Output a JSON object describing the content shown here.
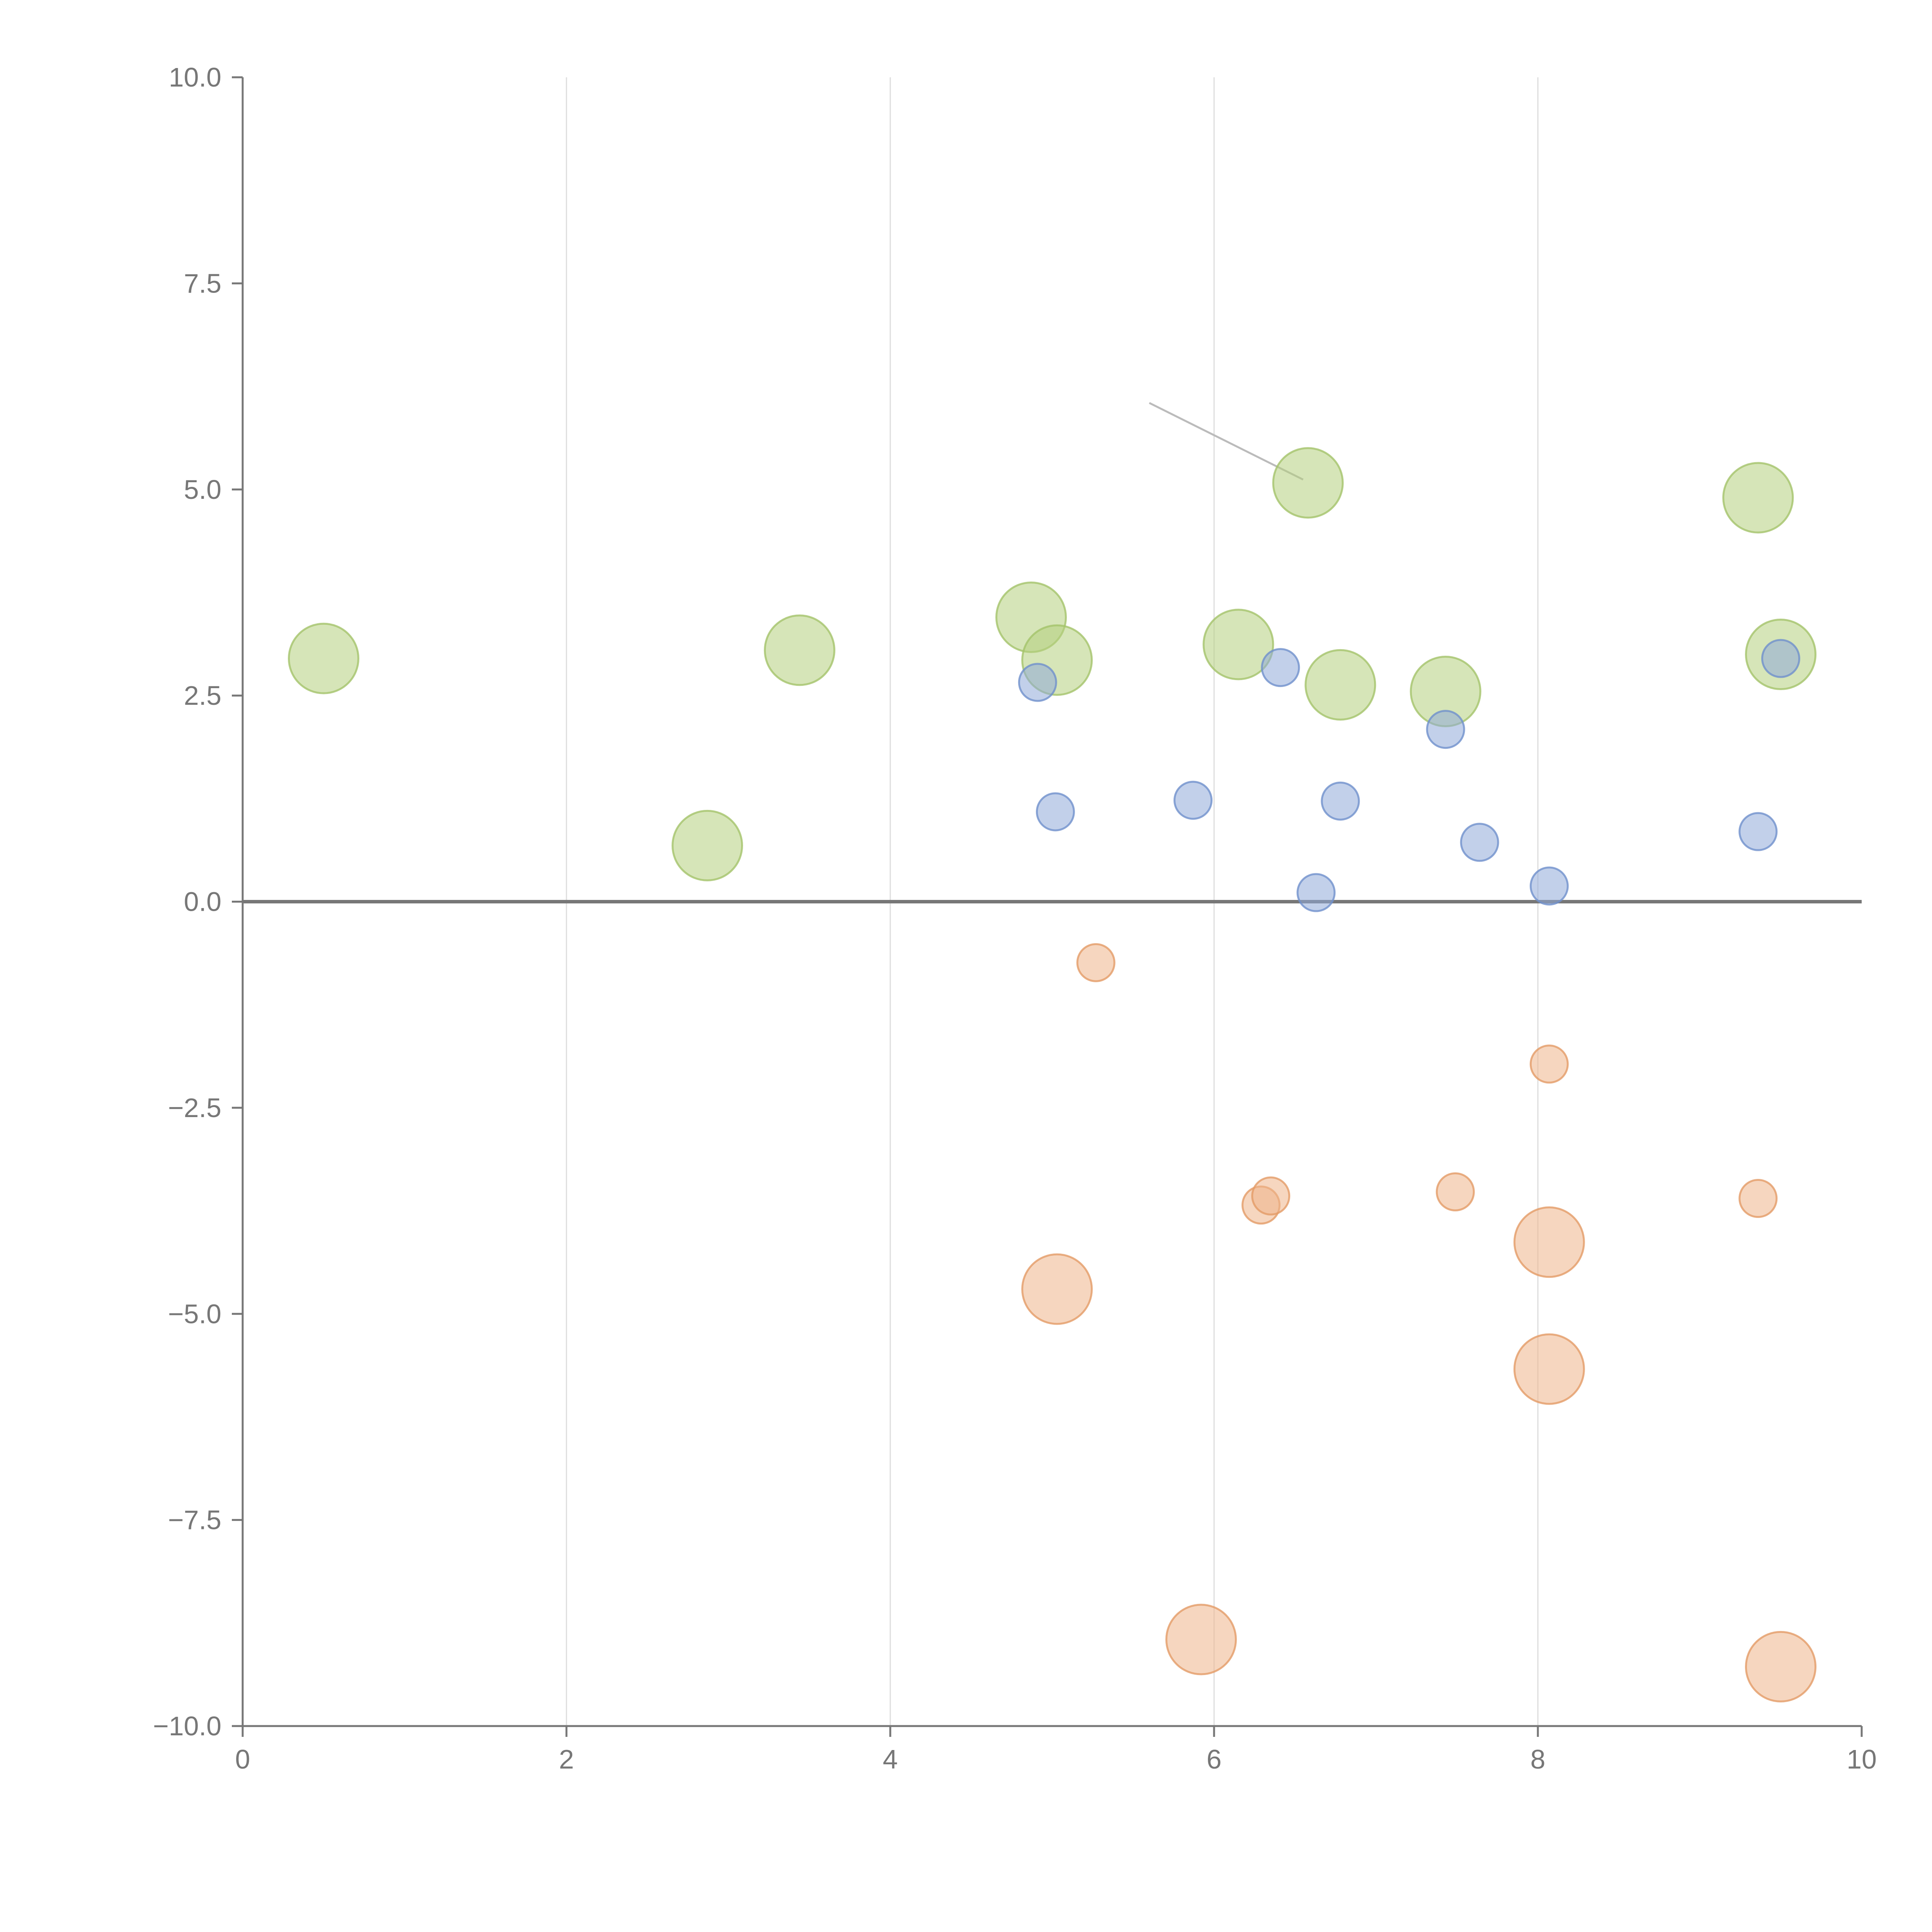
{
  "chart_data": {
    "type": "scatter",
    "title": "",
    "xlabel": "",
    "ylabel": "",
    "xlim": [
      0,
      10
    ],
    "ylim": [
      -10,
      10
    ],
    "grid": "vertical",
    "legend": "none",
    "x_ticks": [
      0,
      2,
      4,
      6,
      8,
      10
    ],
    "y_ticks": [
      10,
      7.5,
      5,
      2.5,
      0,
      -2.5,
      -5,
      -7.5,
      -10
    ],
    "x_tick_labels": [
      "0",
      "2",
      "4",
      "6",
      "8",
      "10"
    ],
    "y_tick_labels": [
      "10.0",
      "7.5",
      "5.0",
      "2.5",
      "0.0",
      "−2.5",
      "−5.0",
      "−7.5",
      "−10.0"
    ],
    "reference_line_y": 0,
    "series": [
      {
        "name": "green",
        "color": "#b5cf7e",
        "stroke": "#a4c36a",
        "size": "large",
        "points": [
          {
            "x": 0.5,
            "y": 2.95
          },
          {
            "x": 2.87,
            "y": 0.68
          },
          {
            "x": 3.44,
            "y": 3.05
          },
          {
            "x": 4.87,
            "y": 3.45
          },
          {
            "x": 5.03,
            "y": 2.93
          },
          {
            "x": 6.15,
            "y": 3.12
          },
          {
            "x": 6.58,
            "y": 5.08
          },
          {
            "x": 6.78,
            "y": 2.63
          },
          {
            "x": 7.43,
            "y": 2.55
          },
          {
            "x": 9.36,
            "y": 4.9
          },
          {
            "x": 9.5,
            "y": 3.0
          }
        ]
      },
      {
        "name": "blue",
        "color": "#8faad8",
        "stroke": "#6f90cc",
        "size": "small",
        "points": [
          {
            "x": 4.91,
            "y": 2.66
          },
          {
            "x": 5.02,
            "y": 1.09
          },
          {
            "x": 5.87,
            "y": 1.23
          },
          {
            "x": 6.41,
            "y": 2.84
          },
          {
            "x": 6.63,
            "y": 0.11
          },
          {
            "x": 6.78,
            "y": 1.22
          },
          {
            "x": 7.43,
            "y": 2.09
          },
          {
            "x": 7.64,
            "y": 0.72
          },
          {
            "x": 8.07,
            "y": 0.19
          },
          {
            "x": 9.36,
            "y": 0.85
          },
          {
            "x": 9.5,
            "y": 2.95
          }
        ]
      },
      {
        "name": "orange",
        "color": "#efb48a",
        "stroke": "#e39b66",
        "size": "mixed",
        "points": [
          {
            "x": 5.27,
            "y": -0.74,
            "size": "small"
          },
          {
            "x": 8.07,
            "y": -1.97,
            "size": "small"
          },
          {
            "x": 6.29,
            "y": -3.68,
            "size": "small"
          },
          {
            "x": 6.35,
            "y": -3.57,
            "size": "small"
          },
          {
            "x": 7.49,
            "y": -3.52,
            "size": "small"
          },
          {
            "x": 9.36,
            "y": -3.6,
            "size": "small"
          },
          {
            "x": 8.07,
            "y": -4.13,
            "size": "large"
          },
          {
            "x": 5.03,
            "y": -4.7,
            "size": "large"
          },
          {
            "x": 8.07,
            "y": -5.67,
            "size": "large"
          },
          {
            "x": 5.92,
            "y": -8.95,
            "size": "large"
          },
          {
            "x": 9.5,
            "y": -9.28,
            "size": "large"
          }
        ]
      }
    ]
  }
}
